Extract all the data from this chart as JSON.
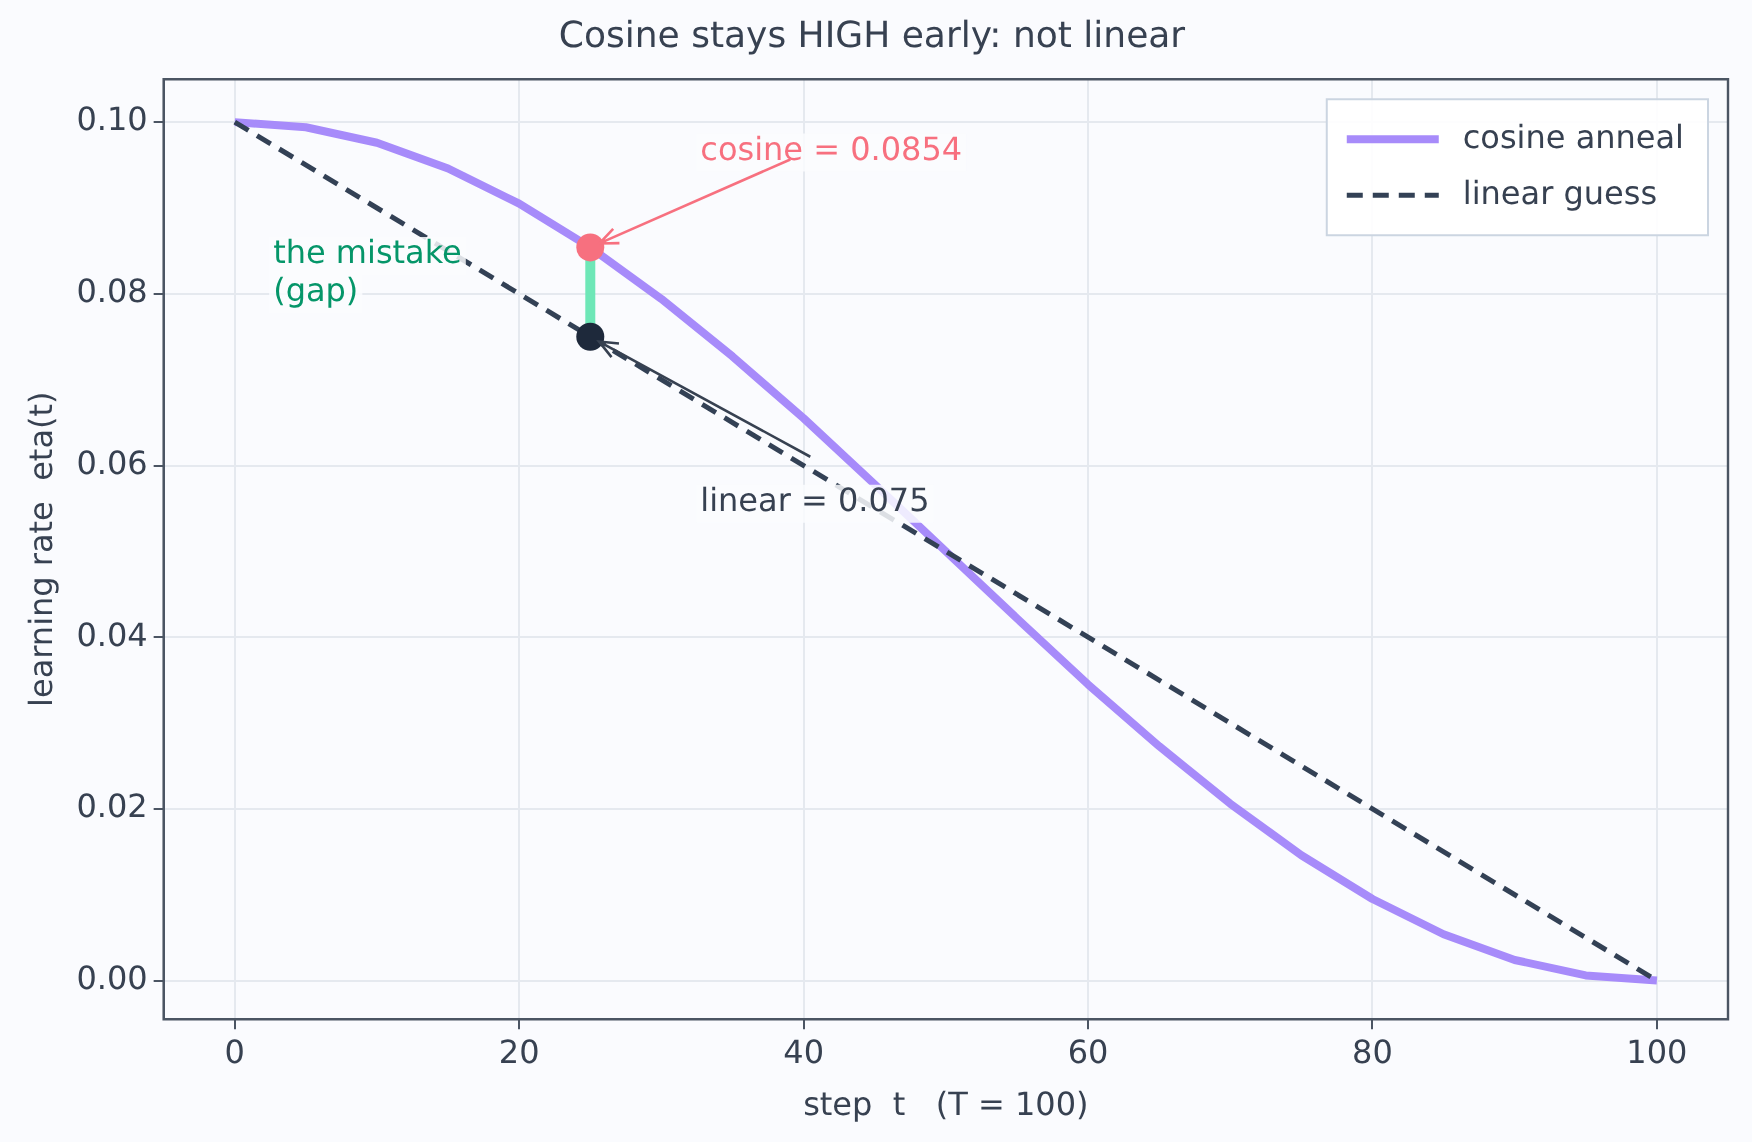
{
  "chart_data": {
    "type": "line",
    "title": "Cosine stays HIGH early: not linear",
    "xlabel": "step  t   (T = 100)",
    "ylabel": "learning rate  eta(t)",
    "xlim": [
      -5,
      105
    ],
    "ylim": [
      -0.0045,
      0.105
    ],
    "xticks": [
      0,
      20,
      40,
      60,
      80,
      100
    ],
    "yticks": [
      {
        "value": 0,
        "label": "0.00"
      },
      {
        "value": 0.02,
        "label": "0.02"
      },
      {
        "value": 0.04,
        "label": "0.04"
      },
      {
        "value": 0.06,
        "label": "0.06"
      },
      {
        "value": 0.08,
        "label": "0.08"
      },
      {
        "value": 0.1,
        "label": "0.10"
      }
    ],
    "grid": true,
    "legend": "top right",
    "series": [
      {
        "name": "cosine anneal",
        "type": "line",
        "color": "#a78bfa",
        "line_style": "solid",
        "marker": "none",
        "x": [
          0,
          5,
          10,
          15,
          20,
          25,
          30,
          35,
          40,
          45,
          50,
          55,
          60,
          65,
          70,
          75,
          80,
          85,
          90,
          95,
          100
        ],
        "values": [
          0.1,
          0.0994,
          0.0976,
          0.0946,
          0.0905,
          0.0854,
          0.0794,
          0.0727,
          0.0655,
          0.0578,
          0.05,
          0.0422,
          0.0345,
          0.0273,
          0.0206,
          0.0146,
          0.0095,
          0.0054,
          0.0024,
          0.0006,
          0
        ]
      },
      {
        "name": "linear guess",
        "type": "line",
        "color": "#334155",
        "line_style": "dashed",
        "marker": "none",
        "x": [
          0,
          100
        ],
        "values": [
          0.1,
          0
        ]
      },
      {
        "type": "line",
        "color": "#6ee7b7",
        "line_style": "solid",
        "marker": "none",
        "x": [
          25,
          25
        ],
        "values": [
          0.075,
          0.0854
        ]
      },
      {
        "type": "scatter",
        "color": "#f7707f",
        "marker": "circle",
        "x": [
          25
        ],
        "values": [
          0.0854
        ]
      },
      {
        "type": "scatter",
        "color": "#1e293b",
        "marker": "circle",
        "x": [
          25
        ],
        "values": [
          0.075
        ]
      }
    ],
    "annotations": [
      {
        "text": "cosine = 0.0854",
        "x": 25,
        "y": 0.0854
      },
      {
        "text": "linear = 0.075",
        "x": 25,
        "y": 0.075
      },
      "the mistake\n(gap)"
    ]
  }
}
